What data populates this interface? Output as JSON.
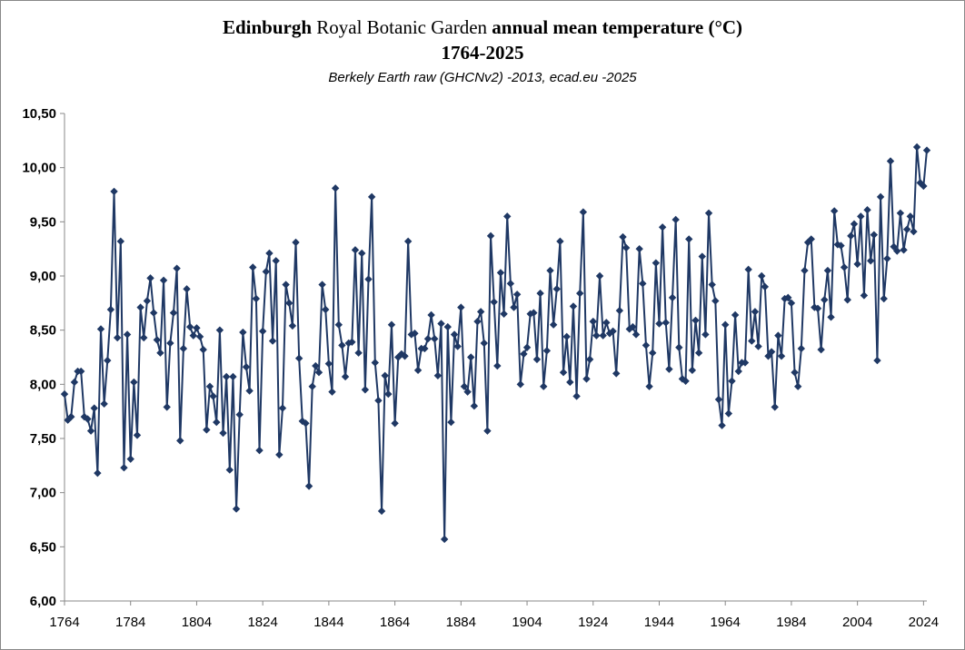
{
  "title": {
    "part1": "Edinburgh",
    "part2": " Royal Botanic Garden ",
    "part3": "annual mean temperature (°C)",
    "line2": "1764-2025"
  },
  "subtitle": "Berkely Earth raw (GHCNv2) -2013, ecad.eu -2025",
  "colors": {
    "series": "#1F3864",
    "axis": "#888888"
  },
  "chart_data": {
    "type": "line",
    "title": "Edinburgh Royal Botanic Garden annual mean temperature (°C) 1764-2025",
    "subtitle": "Berkely Earth raw (GHCNv2) -2013, ecad.eu -2025",
    "xlabel": "",
    "ylabel": "",
    "xlim": [
      1764,
      2025
    ],
    "ylim": [
      6.0,
      10.5
    ],
    "yticks": [
      "6,00",
      "6,50",
      "7,00",
      "7,50",
      "8,00",
      "8,50",
      "9,00",
      "9,50",
      "10,00",
      "10,50"
    ],
    "yticks_values": [
      6.0,
      6.5,
      7.0,
      7.5,
      8.0,
      8.5,
      9.0,
      9.5,
      10.0,
      10.5
    ],
    "xticks": [
      "1764",
      "1784",
      "1804",
      "1824",
      "1844",
      "1864",
      "1884",
      "1904",
      "1924",
      "1944",
      "1964",
      "1984",
      "2004",
      "2024"
    ],
    "xticks_values": [
      1764,
      1784,
      1804,
      1824,
      1844,
      1864,
      1884,
      1904,
      1924,
      1944,
      1964,
      1984,
      2004,
      2024
    ],
    "grid": false,
    "marker": "diamond",
    "series": [
      {
        "x_start": 1764,
        "values": [
          7.91,
          7.67,
          7.7,
          8.02,
          8.12,
          8.12,
          7.7,
          7.68,
          7.57,
          7.78,
          7.18,
          8.51,
          7.82,
          8.22,
          8.69,
          9.78,
          8.43,
          9.32,
          7.23,
          8.46,
          7.31,
          8.02,
          7.53,
          8.71,
          8.43,
          8.77,
          8.98,
          8.66,
          8.41,
          8.29,
          8.96,
          7.79,
          8.38,
          8.66,
          9.07,
          7.48,
          8.33,
          8.88,
          8.53,
          8.45,
          8.52,
          8.44,
          8.32,
          7.58,
          7.98,
          7.89,
          7.65,
          8.5,
          7.55,
          8.07,
          7.21,
          8.07,
          6.85,
          7.72,
          8.48,
          8.16,
          7.94,
          9.08,
          8.79,
          7.39,
          8.49,
          9.04,
          9.21,
          8.4,
          9.14,
          7.35,
          7.78,
          8.92,
          8.75,
          8.54,
          9.31,
          8.24,
          7.66,
          7.64,
          7.06,
          7.98,
          8.17,
          8.11,
          8.92,
          8.69,
          8.19,
          7.93,
          9.81,
          8.55,
          8.36,
          8.07,
          8.38,
          8.39,
          9.24,
          8.29,
          9.21,
          7.95,
          8.97,
          9.73,
          8.2,
          7.85,
          6.83,
          8.08,
          7.91,
          8.55,
          7.64,
          8.25,
          8.28,
          8.26,
          9.32,
          8.46,
          8.47,
          8.13,
          8.33,
          8.33,
          8.42,
          8.64,
          8.42,
          8.08,
          8.56,
          6.57,
          8.53,
          7.65,
          8.46,
          8.35,
          8.71,
          7.98,
          7.93,
          8.25,
          7.8,
          8.58,
          8.67,
          8.38,
          7.57,
          9.37,
          8.76,
          8.17,
          9.03,
          8.65,
          9.55,
          8.93,
          8.71,
          8.83,
          8.0,
          8.28,
          8.34,
          8.65,
          8.66,
          8.23,
          8.84,
          7.98,
          8.31,
          9.05,
          8.55,
          8.88,
          9.32,
          8.11,
          8.44,
          8.02,
          8.72,
          7.89,
          8.84,
          9.59,
          8.05,
          8.23,
          8.58,
          8.45,
          9.0,
          8.45,
          8.57,
          8.47,
          8.49,
          8.1,
          8.68,
          9.36,
          9.26,
          8.51,
          8.53,
          8.46,
          9.25,
          8.93,
          8.36,
          7.98,
          8.29,
          9.12,
          8.56,
          9.45,
          8.57,
          8.14,
          8.8,
          9.52,
          8.34,
          8.05,
          8.03,
          9.34,
          8.13,
          8.59,
          8.29,
          9.18,
          8.46,
          9.58,
          8.92,
          8.77,
          7.86,
          7.62,
          8.55,
          7.73,
          8.03,
          8.64,
          8.12,
          8.2,
          8.2,
          9.06,
          8.4,
          8.67,
          8.35,
          9.0,
          8.9,
          8.26,
          8.3,
          7.79,
          8.45,
          8.26,
          8.79,
          8.8,
          8.75,
          8.11,
          7.98,
          8.33,
          9.05,
          9.31,
          9.34,
          8.71,
          8.7,
          8.32,
          8.78,
          9.05,
          8.62,
          9.6,
          9.29,
          9.28,
          9.08,
          8.78,
          9.37,
          9.48,
          9.11,
          9.55,
          8.82,
          9.61,
          9.14,
          9.38,
          8.22,
          9.73,
          8.79,
          9.16,
          10.06,
          9.27,
          9.23,
          9.58,
          9.24,
          9.43,
          9.55,
          9.41,
          10.19,
          9.86,
          9.83,
          10.16
        ]
      }
    ]
  }
}
